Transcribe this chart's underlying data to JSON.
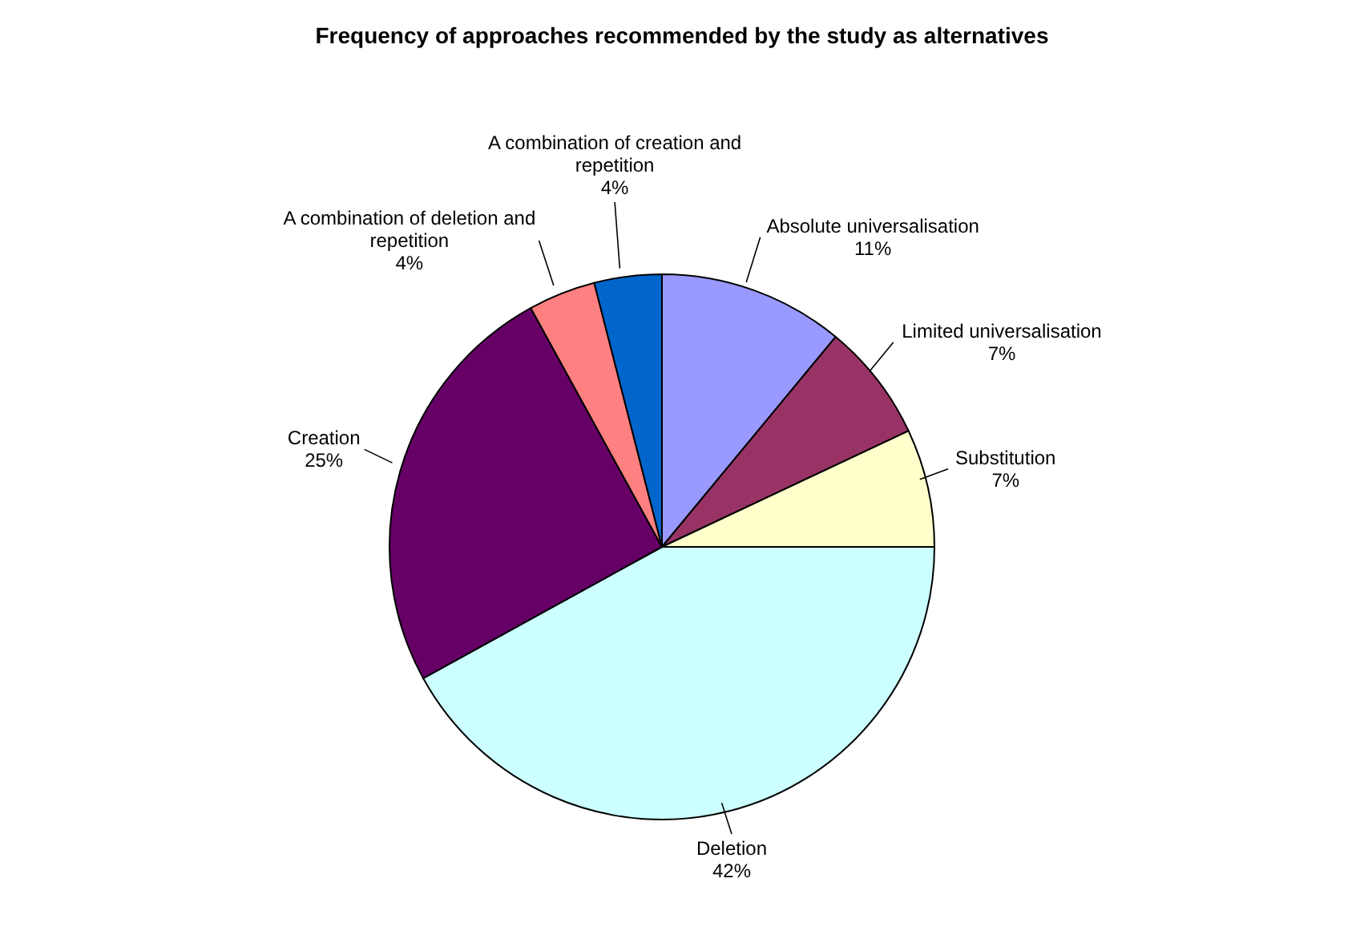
{
  "chart_data": {
    "type": "pie",
    "title": "Frequency of approaches recommended by the study as alternatives",
    "categories": [
      "Absolute universalisation",
      "Limited universalisation",
      "Substitution",
      "Deletion",
      "Creation",
      "A combination of deletion and repetition",
      "A combination of creation and repetition"
    ],
    "values": [
      11,
      7,
      7,
      42,
      25,
      4,
      4
    ],
    "value_labels": [
      "11%",
      "7%",
      "7%",
      "42%",
      "25%",
      "4%",
      "4%"
    ],
    "colors": [
      "#9999ff",
      "#993366",
      "#ffffcc",
      "#ccffff",
      "#660066",
      "#ff8080",
      "#0066cc"
    ],
    "legend": false
  }
}
